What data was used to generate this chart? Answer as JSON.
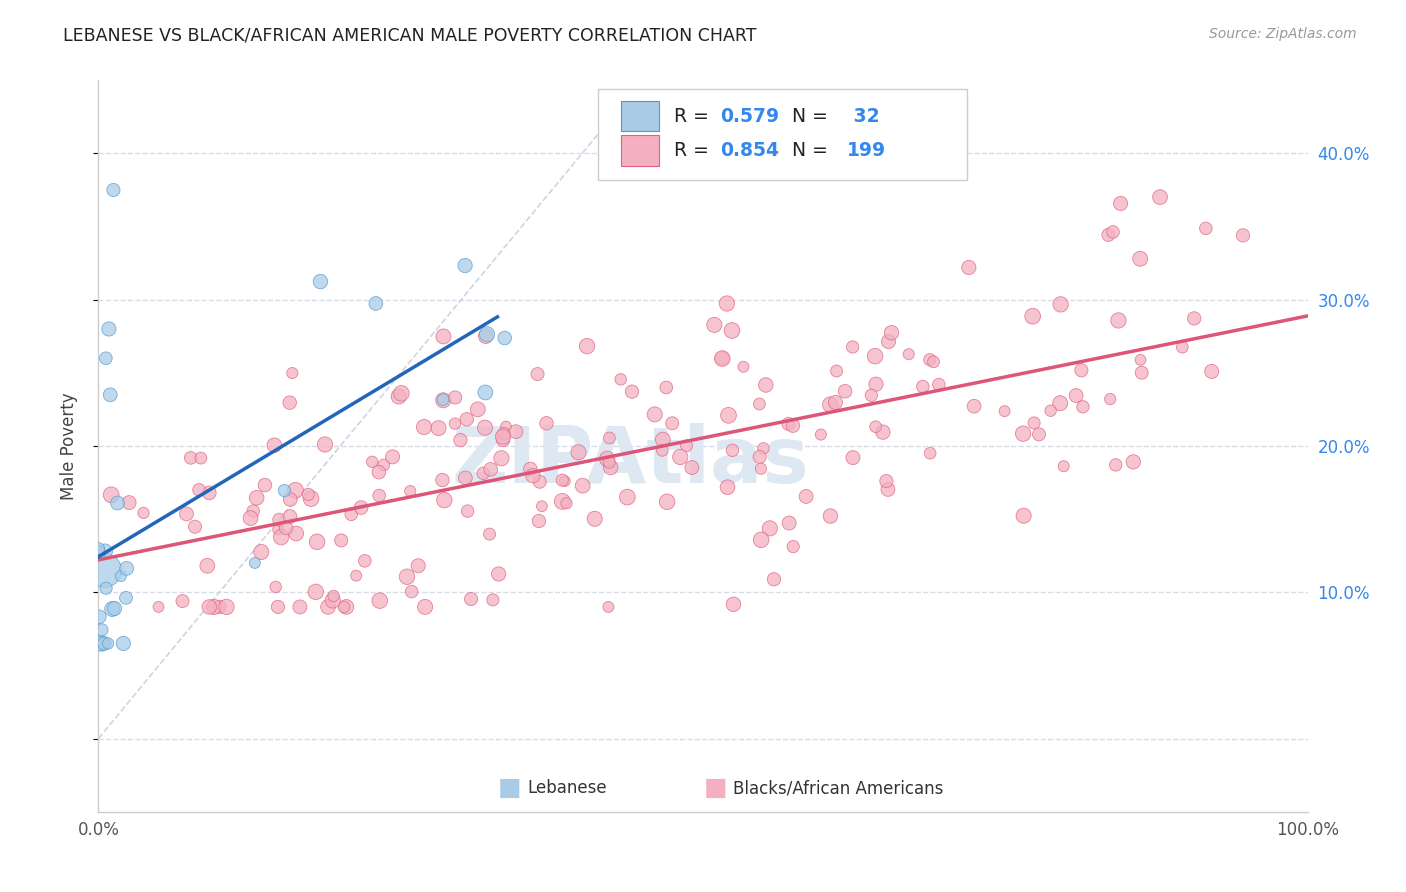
{
  "title": "LEBANESE VS BLACK/AFRICAN AMERICAN MALE POVERTY CORRELATION CHART",
  "source": "Source: ZipAtlas.com",
  "ylabel": "Male Poverty",
  "xlim": [
    0,
    1.0
  ],
  "ylim": [
    -0.05,
    0.45
  ],
  "yticks": [
    0.0,
    0.1,
    0.2,
    0.3,
    0.4
  ],
  "ytick_labels": [
    "",
    "10.0%",
    "20.0%",
    "30.0%",
    "40.0%"
  ],
  "xticks": [
    0.0,
    0.2,
    0.4,
    0.6,
    0.8,
    1.0
  ],
  "xtick_labels": [
    "0.0%",
    "",
    "",
    "",
    "",
    "100.0%"
  ],
  "color_lebanese": "#a8cce8",
  "color_baa": "#f4b0c0",
  "color_lebanese_edge": "#5599cc",
  "color_baa_edge": "#e06080",
  "color_lebanese_line": "#2266bb",
  "color_baa_line": "#dd5577",
  "color_diag_line": "#c8d0e0",
  "background_color": "#ffffff",
  "grid_color": "#d8dce8",
  "N_leb": 32,
  "N_baa": 199
}
